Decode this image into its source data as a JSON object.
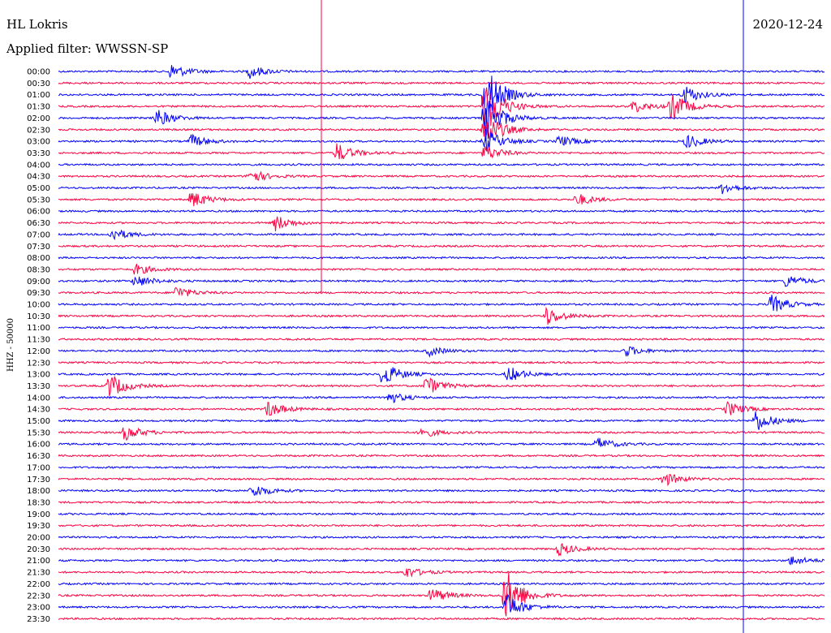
{
  "header": {
    "station": "HL Lokris",
    "filter": "Applied filter: WWSSN-SP",
    "date": "2020-12-24"
  },
  "chart_data": {
    "type": "line",
    "title": "HL Lokris",
    "subtitle": "Applied filter: WWSSN-SP",
    "date": "2020-12-24",
    "ylabel": "HHZ - 50000",
    "xlabel": "",
    "grid": false,
    "legend": "none",
    "colors": {
      "odd_rows": "#0000ff",
      "even_rows": "#ff0040"
    },
    "rows": [
      "00:00",
      "00:30",
      "01:00",
      "01:30",
      "02:00",
      "02:30",
      "03:00",
      "03:30",
      "04:00",
      "04:30",
      "05:00",
      "05:30",
      "06:00",
      "06:30",
      "07:00",
      "07:30",
      "08:00",
      "08:30",
      "09:00",
      "09:30",
      "10:00",
      "10:30",
      "11:00",
      "11:30",
      "12:00",
      "12:30",
      "13:00",
      "13:30",
      "14:00",
      "14:30",
      "15:00",
      "15:30",
      "16:00",
      "16:30",
      "17:00",
      "17:30",
      "18:00",
      "18:30",
      "19:00",
      "19:30",
      "20:00",
      "20:30",
      "21:00",
      "21:30",
      "22:00",
      "22:30",
      "23:00",
      "23:30"
    ],
    "x_range_minutes": [
      0,
      30
    ],
    "events": [
      {
        "row": 0,
        "t": 4.4,
        "amp": 10
      },
      {
        "row": 0,
        "t": 7.5,
        "amp": 8
      },
      {
        "row": 2,
        "t": 16.7,
        "amp": 40
      },
      {
        "row": 3,
        "t": 16.7,
        "amp": 38
      },
      {
        "row": 4,
        "t": 16.7,
        "amp": 32
      },
      {
        "row": 5,
        "t": 16.7,
        "amp": 24
      },
      {
        "row": 6,
        "t": 16.7,
        "amp": 16
      },
      {
        "row": 7,
        "t": 16.7,
        "amp": 10
      },
      {
        "row": 3,
        "t": 24.0,
        "amp": 18
      },
      {
        "row": 3,
        "t": 22.5,
        "amp": 8
      },
      {
        "row": 2,
        "t": 24.5,
        "amp": 12
      },
      {
        "row": 4,
        "t": 3.8,
        "amp": 12
      },
      {
        "row": 6,
        "t": 5.2,
        "amp": 8
      },
      {
        "row": 6,
        "t": 19.6,
        "amp": 7
      },
      {
        "row": 6,
        "t": 24.6,
        "amp": 9
      },
      {
        "row": 7,
        "t": 10.9,
        "amp": 12
      },
      {
        "row": 9,
        "t": 7.5,
        "amp": 9
      },
      {
        "row": 10,
        "t": 26.0,
        "amp": 7
      },
      {
        "row": 11,
        "t": 5.2,
        "amp": 11
      },
      {
        "row": 11,
        "t": 20.3,
        "amp": 8
      },
      {
        "row": 13,
        "t": 8.5,
        "amp": 10
      },
      {
        "row": 14,
        "t": 2.1,
        "amp": 8
      },
      {
        "row": 17,
        "t": 3.0,
        "amp": 7
      },
      {
        "row": 18,
        "t": 3.0,
        "amp": 8
      },
      {
        "row": 18,
        "t": 28.5,
        "amp": 8
      },
      {
        "row": 19,
        "t": 4.6,
        "amp": 8
      },
      {
        "row": 20,
        "t": 27.9,
        "amp": 12
      },
      {
        "row": 21,
        "t": 19.1,
        "amp": 12
      },
      {
        "row": 24,
        "t": 14.5,
        "amp": 6
      },
      {
        "row": 24,
        "t": 22.2,
        "amp": 7
      },
      {
        "row": 26,
        "t": 12.7,
        "amp": 16
      },
      {
        "row": 26,
        "t": 17.6,
        "amp": 10
      },
      {
        "row": 27,
        "t": 2.0,
        "amp": 16
      },
      {
        "row": 27,
        "t": 14.4,
        "amp": 12
      },
      {
        "row": 28,
        "t": 12.9,
        "amp": 8
      },
      {
        "row": 29,
        "t": 8.2,
        "amp": 10
      },
      {
        "row": 29,
        "t": 26.2,
        "amp": 9
      },
      {
        "row": 30,
        "t": 27.3,
        "amp": 14
      },
      {
        "row": 31,
        "t": 2.6,
        "amp": 10
      },
      {
        "row": 31,
        "t": 14.2,
        "amp": 7
      },
      {
        "row": 32,
        "t": 21.1,
        "amp": 8
      },
      {
        "row": 35,
        "t": 23.7,
        "amp": 9
      },
      {
        "row": 36,
        "t": 7.6,
        "amp": 9
      },
      {
        "row": 41,
        "t": 19.6,
        "amp": 8
      },
      {
        "row": 42,
        "t": 28.7,
        "amp": 6
      },
      {
        "row": 43,
        "t": 13.6,
        "amp": 7
      },
      {
        "row": 45,
        "t": 17.5,
        "amp": 36
      },
      {
        "row": 45,
        "t": 14.6,
        "amp": 10
      },
      {
        "row": 46,
        "t": 17.5,
        "amp": 18
      }
    ]
  }
}
